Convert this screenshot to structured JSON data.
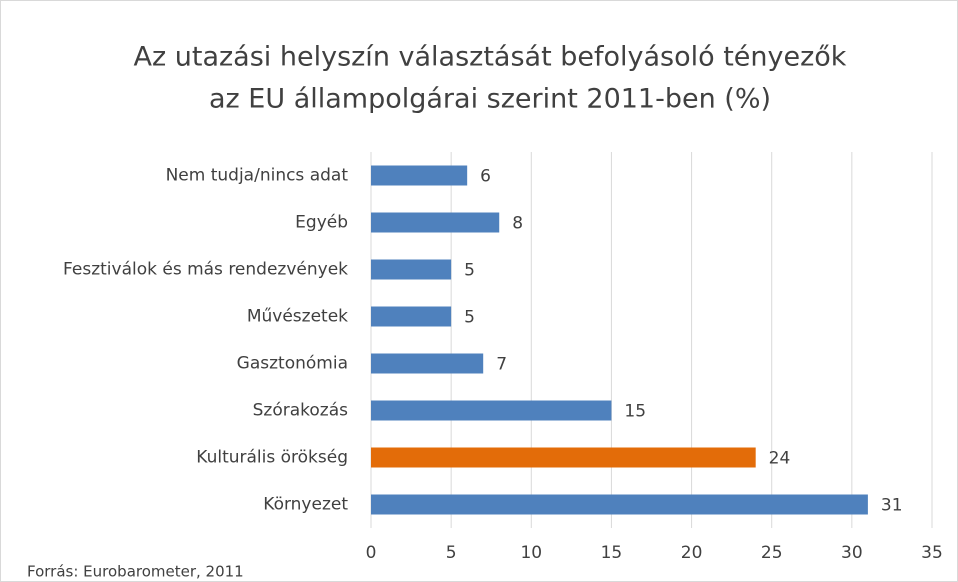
{
  "chart_data": {
    "type": "barh",
    "title": [
      "Az utazási helyszín választását befolyásoló tényezők",
      "az EU állampolgárai szerint 2011-ben (%)"
    ],
    "categories": [
      "Nem tudja/nincs adat",
      "Egyéb",
      "Fesztiválok és más rendezvények",
      "Művészetek",
      "Gasztonómia",
      "Szórakozás",
      "Kulturális örökség",
      "Környezet"
    ],
    "values": [
      6,
      8,
      5,
      5,
      7,
      15,
      24,
      31
    ],
    "colors": [
      "#4f81bd",
      "#4f81bd",
      "#4f81bd",
      "#4f81bd",
      "#4f81bd",
      "#4f81bd",
      "#e36c09",
      "#4f81bd"
    ],
    "xlim": [
      0,
      35
    ],
    "xticks": [
      0,
      5,
      10,
      15,
      20,
      25,
      30,
      35
    ],
    "grid": true,
    "source": "Forrás: Eurobarometer, 2011"
  }
}
